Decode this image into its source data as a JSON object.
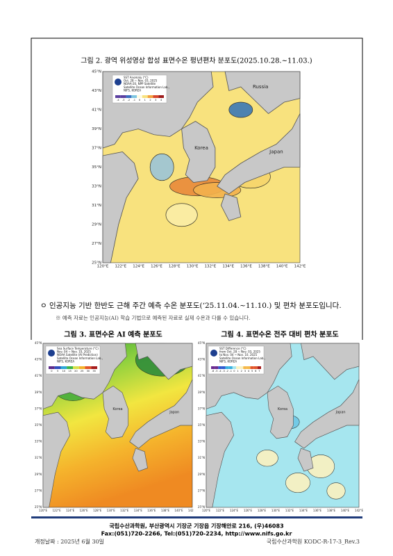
{
  "figure2": {
    "title": "그림 2. 광역 위성영상 합성 표면수온 평년편차 분포도(2025.10.28.~11.03.)",
    "legend": [
      "SST Anomaly (°C)",
      "Oct. 28 ~ Nov. 03, 2025",
      "NOAA-20, NPP Satellite",
      "Satellite Ocean Information Lab.,",
      "NIFS, KOREA"
    ],
    "scale": [
      -4,
      -3,
      -2,
      -1,
      0,
      1,
      2,
      3,
      4
    ],
    "places": [
      "Russia",
      "Korea",
      "Japan"
    ],
    "lat": [
      "45°N",
      "43°N",
      "41°N",
      "39°N",
      "37°N",
      "35°N",
      "33°N",
      "31°N",
      "29°N",
      "27°N",
      "25°N"
    ],
    "lon": [
      "120°E",
      "122°E",
      "124°E",
      "126°E",
      "128°E",
      "130°E",
      "132°E",
      "134°E",
      "136°E",
      "138°E",
      "140°E",
      "142°E"
    ]
  },
  "body": {
    "bullet": "ㅇ 인공지능 기반 한반도 근해 주간 예측 수온 분포도(‘25.11.04.~11.10.) 및 편차 분포도입니다.",
    "note": "※ 예측 자료는 인공지능(AI) 학습 기법으로 예측된 자료로 실제 수온과 다를 수 있습니다."
  },
  "figure3": {
    "title": "그림 3. 표면수온 AI 예측 분포도",
    "legend": [
      "Sea Surface Temperature (°C)",
      "Nov. 04 ~ Nov. 10, 2025",
      "NOAA Satellite (AI Prediction)",
      "Satellite Ocean Information Lab.,",
      "NIFS, KOREA"
    ],
    "scale": [
      0,
      5,
      10,
      15,
      20,
      25,
      30,
      35
    ],
    "places": [
      "Korea",
      "Japan"
    ],
    "lat": [
      "45°N",
      "43°N",
      "41°N",
      "39°N",
      "37°N",
      "35°N",
      "33°N",
      "31°N",
      "29°N",
      "27°N",
      "25°N"
    ],
    "lon": [
      "120°E",
      "122°E",
      "124°E",
      "126°E",
      "128°E",
      "130°E",
      "132°E",
      "134°E",
      "136°E",
      "138°E",
      "140°E",
      "142°E"
    ]
  },
  "figure4": {
    "title": "그림 4. 표면수온 전주 대비 편차 분포도",
    "legend": [
      "SST Difference (°C)",
      "from Oct. 28 ~ Nov. 03, 2025",
      "to Nov. 04 ~ Nov. 10, 2025",
      "Satellite Ocean Information Lab.,",
      "NIFS, KOREA"
    ],
    "scale": [
      -6,
      -5,
      -4,
      -3,
      -2,
      -1,
      0,
      1,
      2,
      3,
      4,
      5,
      6,
      7
    ],
    "places": [
      "Korea",
      "Japan"
    ],
    "lat": [
      "45°N",
      "43°N",
      "41°N",
      "39°N",
      "37°N",
      "35°N",
      "33°N",
      "31°N",
      "29°N",
      "27°N",
      "25°N"
    ],
    "lon": [
      "120°E",
      "122°E",
      "124°E",
      "126°E",
      "128°E",
      "130°E",
      "132°E",
      "134°E",
      "136°E",
      "138°E",
      "140°E",
      "142°E"
    ]
  },
  "footer": {
    "line1": "국립수산과학원, 부산광역시 기장군 기장읍 기장해안로 216, (우)46083",
    "line2": "Fax:(051)720-2266, Tel:(051)720-2234, http://www.nifs.go.kr"
  },
  "revision": {
    "date": "개정날짜 : 2025년 6월 30일",
    "code": "국립수산과학원 KODC-R-17-3_Rev.3"
  }
}
